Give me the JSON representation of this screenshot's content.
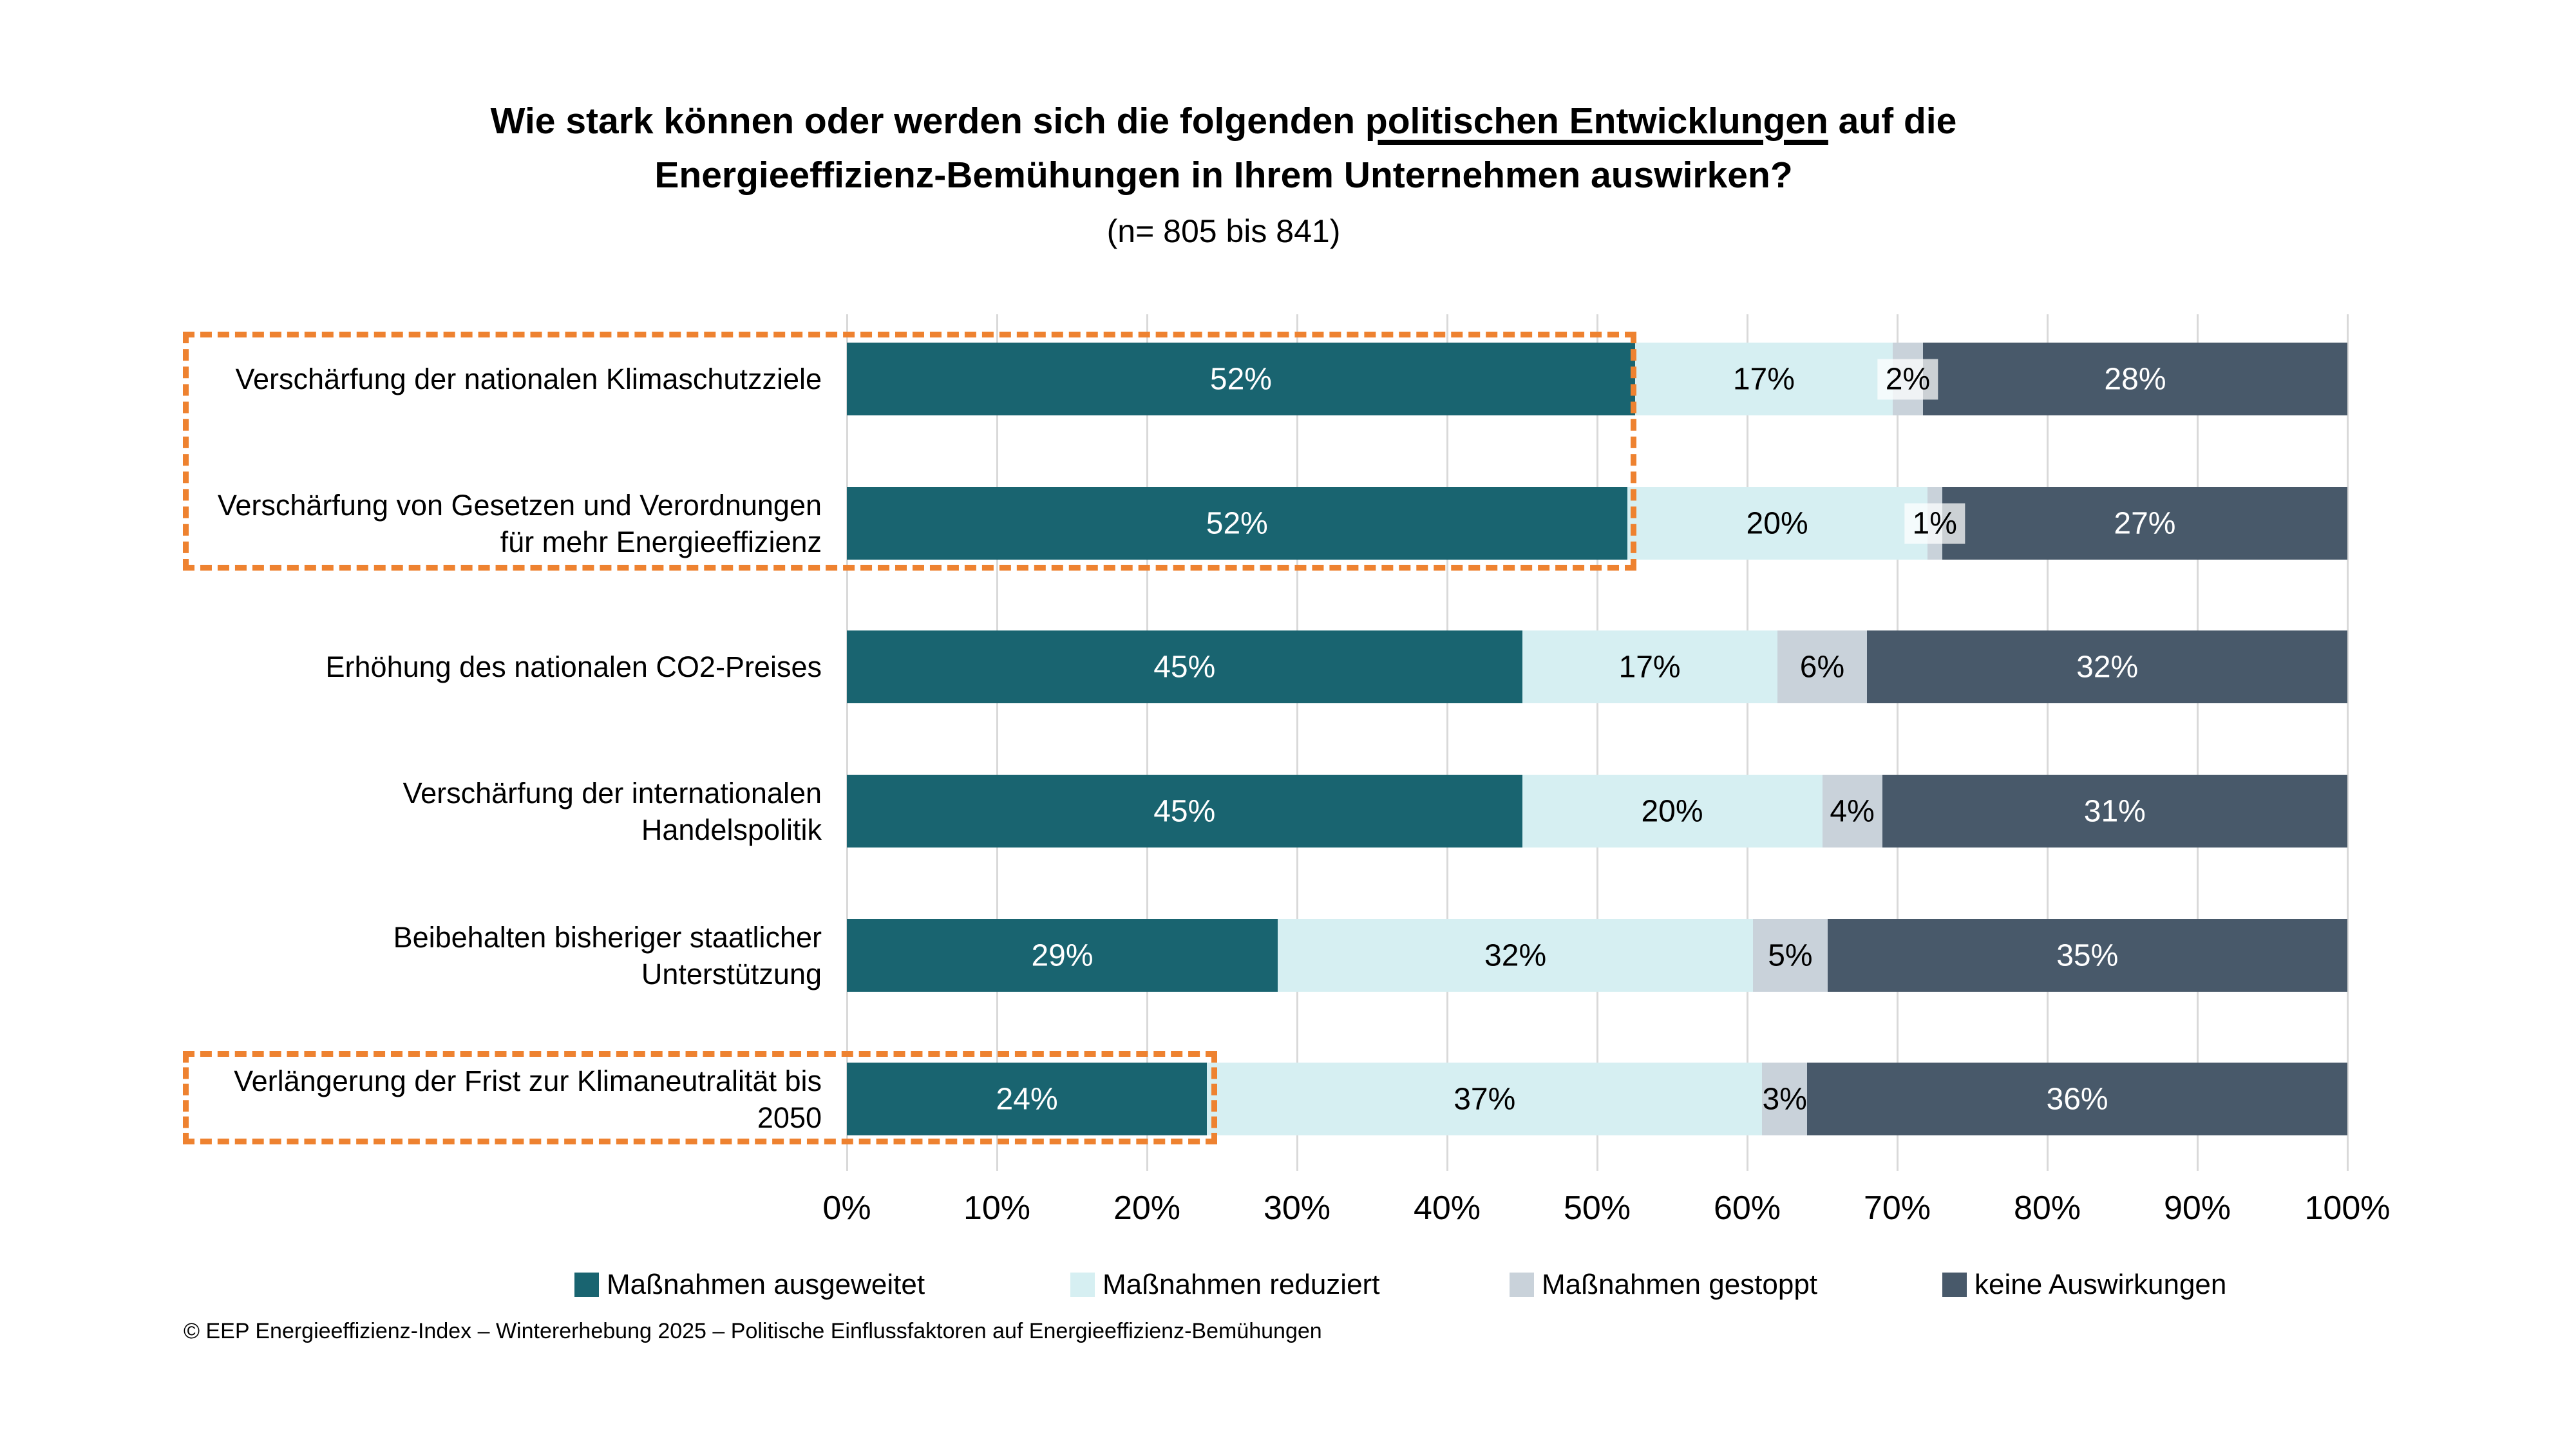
{
  "chart_data": {
    "type": "bar",
    "stacked": true,
    "horizontal": true,
    "percent_scale": true,
    "title_parts": {
      "line1_pre": "Wie stark können oder werden sich die folgenden ",
      "line1_underlined": "politischen Entwicklungen",
      "line1_post": " auf die",
      "line2": "Energieeffizienz-Bemühungen in Ihrem Unternehmen auswirken?"
    },
    "subtitle": "(n= 805 bis 841)",
    "categories": [
      [
        "Verschärfung der nationalen Klimaschutzziele"
      ],
      [
        "Verschärfung von Gesetzen und Verordnungen",
        "für mehr Energieeffizienz"
      ],
      [
        "Erhöhung des nationalen CO2-Preises"
      ],
      [
        "Verschärfung der internationalen",
        "Handelspolitik"
      ],
      [
        "Beibehalten bisheriger staatlicher",
        "Unterstützung"
      ],
      [
        "Verlängerung der Frist zur Klimaneutralität bis",
        "2050"
      ]
    ],
    "series": [
      {
        "name": "Maßnahmen ausgeweitet",
        "color": "#196470",
        "label_color": "#FFFFFF",
        "values": [
          52,
          52,
          45,
          45,
          29,
          24
        ]
      },
      {
        "name": "Maßnahmen reduziert",
        "color": "#D6EFF2",
        "label_color": "#000000",
        "values": [
          17,
          20,
          17,
          20,
          32,
          37
        ]
      },
      {
        "name": "Maßnahmen gestoppt",
        "color": "#C9D2DA",
        "label_color": "#000000",
        "values": [
          2,
          1,
          6,
          4,
          5,
          3
        ]
      },
      {
        "name": "keine Auswirkungen",
        "color": "#48596A",
        "label_color": "#FFFFFF",
        "values": [
          28,
          27,
          32,
          31,
          35,
          36
        ]
      }
    ],
    "value_suffix": "%",
    "boxed_value_labels": [
      {
        "row": 0,
        "segment": 2
      },
      {
        "row": 1,
        "segment": 2
      }
    ],
    "x_ticks": [
      "0%",
      "10%",
      "20%",
      "30%",
      "40%",
      "50%",
      "60%",
      "70%",
      "80%",
      "90%",
      "100%"
    ],
    "xlim": [
      0,
      100
    ],
    "grid": true,
    "gridline_color": "#D9D9D9",
    "legend_position": "bottom",
    "annotations": {
      "highlight_box_color": "#EE8230",
      "highlight_boxes": [
        {
          "rows": [
            0,
            1
          ]
        },
        {
          "rows": [
            5
          ]
        }
      ]
    }
  },
  "footer": "© EEP Energieeffizienz-Index – Wintererhebung 2025 – Politische Einflussfaktoren auf Energieeffizienz-Bemühungen"
}
